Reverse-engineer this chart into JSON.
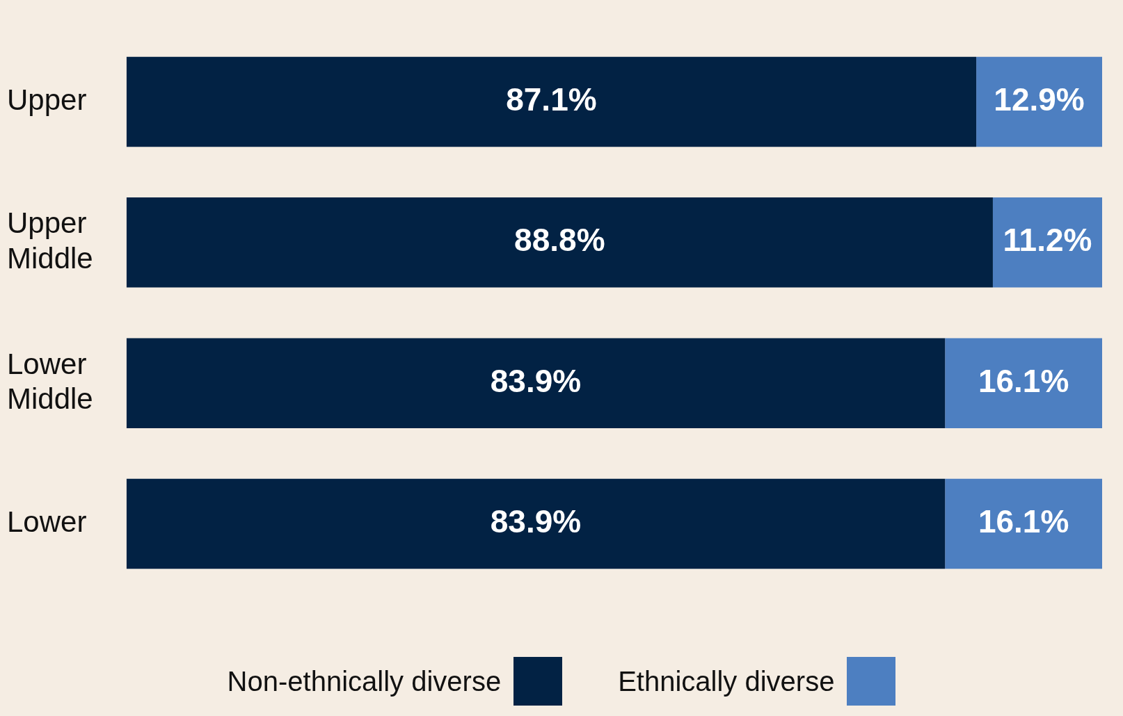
{
  "chart_data": {
    "type": "bar",
    "orientation": "horizontal",
    "stacked": true,
    "categories": [
      "Upper",
      "Upper Middle",
      "Lower Middle",
      "Lower"
    ],
    "series": [
      {
        "name": "Non-ethnically diverse",
        "color": "#022244",
        "values": [
          87.1,
          88.8,
          83.9,
          83.9
        ],
        "value_labels": [
          "87.1%",
          "88.8%",
          "83.9%",
          "83.9%"
        ]
      },
      {
        "name": "Ethnically diverse",
        "color": "#4d7fc1",
        "values": [
          12.9,
          11.2,
          16.1,
          16.1
        ],
        "value_labels": [
          "12.9%",
          "11.2%",
          "16.1%",
          "16.1%"
        ]
      }
    ],
    "legend": "bottom",
    "tick_labels": "y"
  }
}
